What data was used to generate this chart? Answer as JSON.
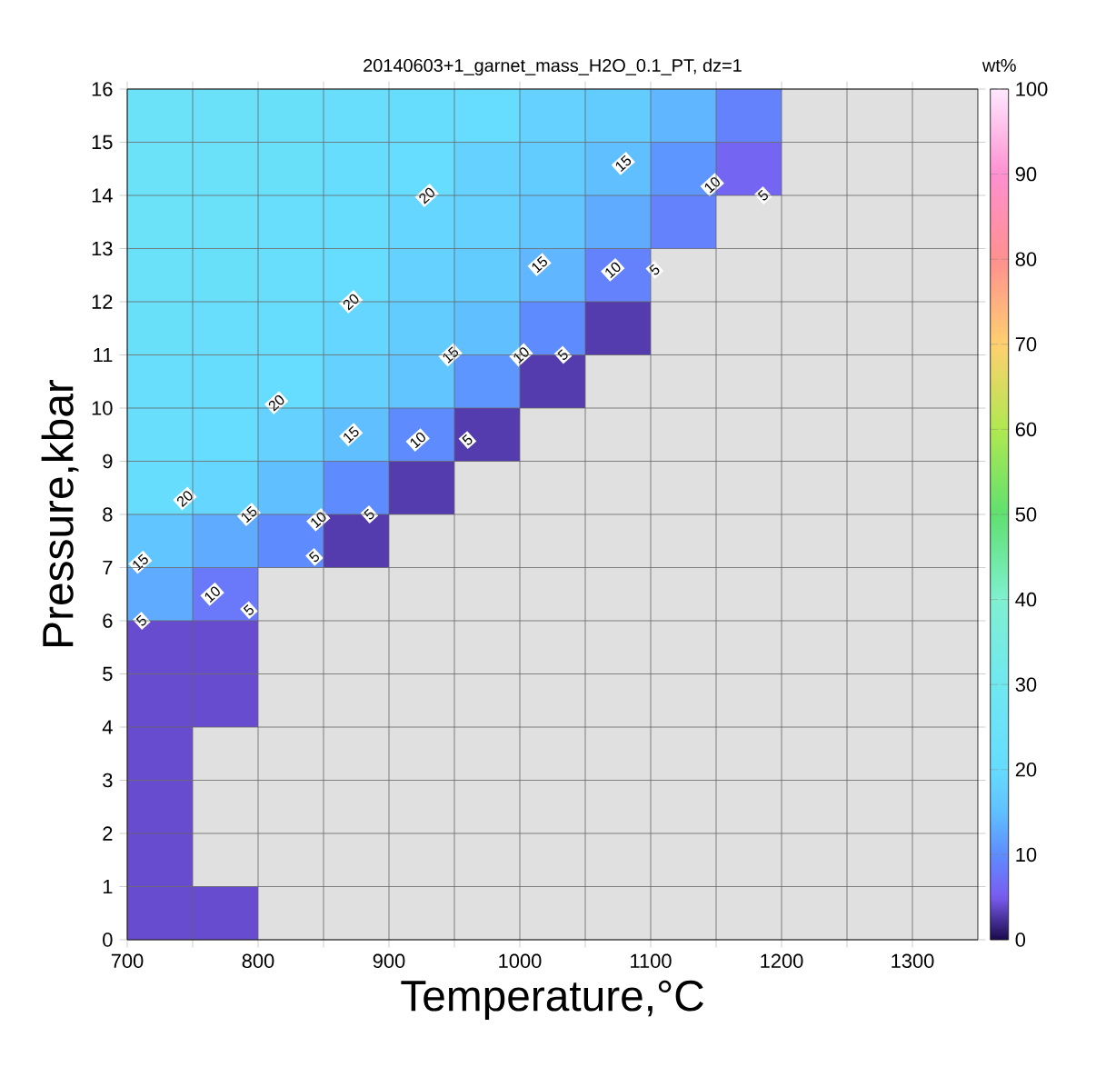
{
  "chart_data": {
    "type": "heatmap",
    "title": "20140603+1_garnet_mass_H2O_0.1_PT, dz=1",
    "xlabel": "Temperature,°C",
    "ylabel": "Pressure,kbar",
    "clabel": "wt%",
    "x": [
      725,
      775,
      825,
      875,
      925,
      975,
      1025,
      1075,
      1125,
      1175,
      1225,
      1275,
      1325
    ],
    "y": [
      15.5,
      14.5,
      13.5,
      12.5,
      11.5,
      10.5,
      9.5,
      8.5,
      7.5,
      6.5,
      5.5,
      4.5,
      3.5,
      2.5,
      1.5,
      0.5
    ],
    "cells": [
      [
        25,
        24,
        23,
        22,
        21,
        20,
        18,
        17,
        14,
        9,
        null,
        null,
        null
      ],
      [
        25,
        24,
        23,
        21,
        20,
        18,
        17,
        15,
        11,
        6,
        null,
        null,
        null
      ],
      [
        25,
        24,
        22,
        21,
        19,
        18,
        16,
        13,
        9,
        null,
        null,
        null,
        null
      ],
      [
        24,
        23,
        22,
        20,
        18,
        17,
        14,
        9,
        null,
        null,
        null,
        null,
        null
      ],
      [
        23,
        22,
        21,
        19,
        17,
        15,
        10,
        3,
        null,
        null,
        null,
        null,
        null
      ],
      [
        22,
        21,
        20,
        18,
        16,
        11,
        3,
        null,
        null,
        null,
        null,
        null,
        null
      ],
      [
        22,
        20,
        18,
        15,
        10,
        3,
        null,
        null,
        null,
        null,
        null,
        null,
        null
      ],
      [
        21,
        19,
        15,
        10,
        3,
        null,
        null,
        null,
        null,
        null,
        null,
        null,
        null
      ],
      [
        16,
        13,
        10,
        3,
        null,
        null,
        null,
        null,
        null,
        null,
        null,
        null,
        null
      ],
      [
        13,
        8,
        null,
        null,
        null,
        null,
        null,
        null,
        null,
        null,
        null,
        null,
        null
      ],
      [
        4,
        4,
        null,
        null,
        null,
        null,
        null,
        null,
        null,
        null,
        null,
        null,
        null
      ],
      [
        4,
        4,
        null,
        null,
        null,
        null,
        null,
        null,
        null,
        null,
        null,
        null,
        null
      ],
      [
        4,
        null,
        null,
        null,
        null,
        null,
        null,
        null,
        null,
        null,
        null,
        null,
        null
      ],
      [
        4,
        null,
        null,
        null,
        null,
        null,
        null,
        null,
        null,
        null,
        null,
        null,
        null
      ],
      [
        4,
        null,
        null,
        null,
        null,
        null,
        null,
        null,
        null,
        null,
        null,
        null,
        null
      ],
      [
        4,
        4,
        null,
        null,
        null,
        null,
        null,
        null,
        null,
        null,
        null,
        null,
        null
      ]
    ],
    "xlim": [
      700,
      1350
    ],
    "ylim": [
      0,
      16
    ],
    "xticks": [
      700,
      {
        "value": 750,
        "label": null
      },
      800,
      {
        "value": 850,
        "label": null
      },
      900,
      {
        "value": 950,
        "label": null
      },
      1000,
      {
        "value": 1050,
        "label": null
      },
      1100,
      {
        "value": 1150,
        "label": null
      },
      1200,
      {
        "value": 1250,
        "label": null
      },
      1300
    ],
    "yticks": [
      0,
      1,
      2,
      3,
      4,
      5,
      6,
      7,
      8,
      9,
      10,
      11,
      12,
      13,
      14,
      15,
      16
    ],
    "clim": [
      0,
      100
    ],
    "cticks": [
      0,
      10,
      20,
      30,
      40,
      50,
      60,
      70,
      80,
      90,
      100
    ],
    "grid": true,
    "annotations": [
      {
        "text": "20",
        "x": 929,
        "y": 14.0
      },
      {
        "text": "20",
        "x": 871,
        "y": 12.0
      },
      {
        "text": "20",
        "x": 814,
        "y": 10.1
      },
      {
        "text": "20",
        "x": 744,
        "y": 8.3
      },
      {
        "text": "15",
        "x": 1079,
        "y": 14.6
      },
      {
        "text": "15",
        "x": 1015,
        "y": 12.7
      },
      {
        "text": "15",
        "x": 947,
        "y": 11.0
      },
      {
        "text": "15",
        "x": 871,
        "y": 9.5
      },
      {
        "text": "15",
        "x": 793,
        "y": 8.0
      },
      {
        "text": "15",
        "x": 710,
        "y": 7.1
      },
      {
        "text": "10",
        "x": 1147,
        "y": 14.2
      },
      {
        "text": "10",
        "x": 1071,
        "y": 12.6
      },
      {
        "text": "10",
        "x": 1001,
        "y": 11.0
      },
      {
        "text": "10",
        "x": 922,
        "y": 9.4
      },
      {
        "text": "10",
        "x": 846,
        "y": 7.9
      },
      {
        "text": "10",
        "x": 765,
        "y": 6.5
      },
      {
        "text": "5",
        "x": 1186,
        "y": 14.0
      },
      {
        "text": "5",
        "x": 1103,
        "y": 12.6
      },
      {
        "text": "5",
        "x": 1033,
        "y": 11.0
      },
      {
        "text": "5",
        "x": 960,
        "y": 9.4
      },
      {
        "text": "5",
        "x": 885,
        "y": 8.0
      },
      {
        "text": "5",
        "x": 843,
        "y": 7.2
      },
      {
        "text": "5",
        "x": 793,
        "y": 6.2
      },
      {
        "text": "5",
        "x": 711,
        "y": 6.0
      }
    ]
  }
}
